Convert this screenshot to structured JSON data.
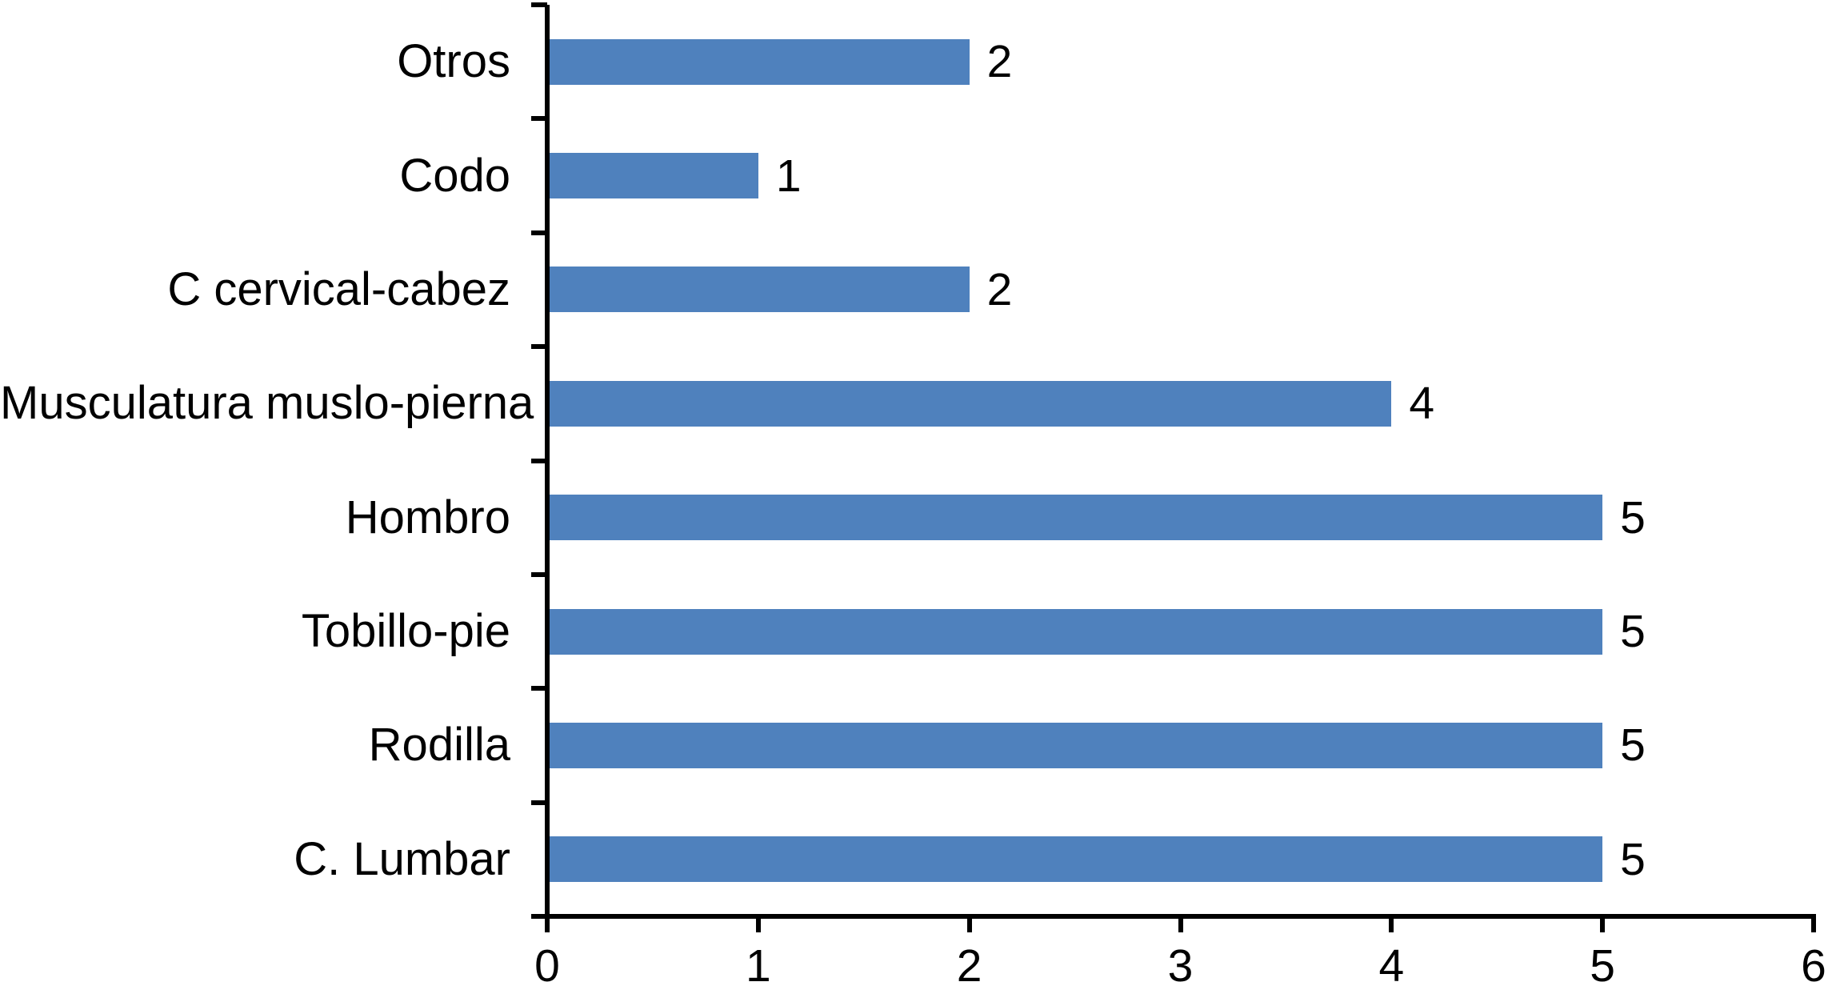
{
  "chart_data": {
    "type": "bar",
    "orientation": "horizontal",
    "title": "",
    "xlabel": "",
    "ylabel": "",
    "categories": [
      "Otros",
      "Codo",
      "C cervical-cabez",
      "Musculatura muslo-pierna",
      "Hombro",
      "Tobillo-pie",
      "Rodilla",
      "C. Lumbar"
    ],
    "values": [
      2,
      1,
      2,
      4,
      5,
      5,
      5,
      5
    ],
    "value_labels": [
      "2",
      "1",
      "2",
      "4",
      "5",
      "5",
      "5",
      "5"
    ],
    "x_tick_labels": [
      "0",
      "1",
      "2",
      "3",
      "4",
      "5",
      "6"
    ],
    "xlim": [
      0,
      6
    ],
    "grid": "off",
    "legend": "none",
    "bar_color": "#4F81BD",
    "axis_color": "#000000",
    "text_color": "#000000",
    "background_color": "#FFFFFF"
  }
}
